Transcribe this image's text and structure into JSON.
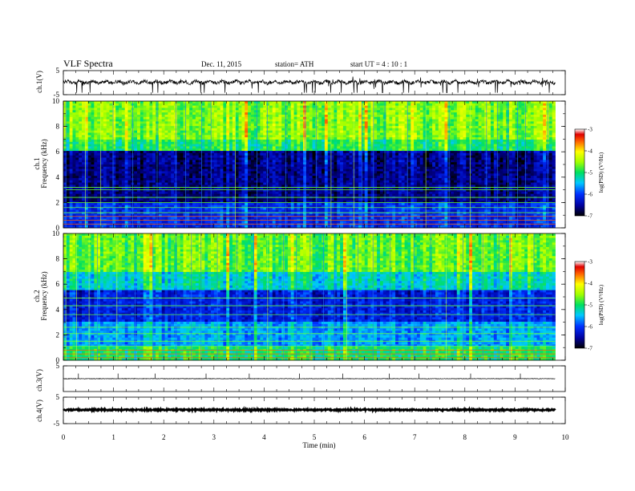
{
  "header": {
    "title": "VLF Spectra",
    "date": "Dec. 11, 2015",
    "station": "station= ATH",
    "start": "start  UT  =   4 : 10 : 1"
  },
  "chart_data": [
    {
      "type": "line",
      "panel": "ch1-waveform",
      "ylabel": "ch.1(V)",
      "ylim": [
        -5,
        5
      ],
      "yticks": [
        "5",
        "-5"
      ],
      "xlim": [
        0,
        10
      ]
    },
    {
      "type": "heatmap",
      "panel": "ch1-spectrogram",
      "ylabel_line1": "ch.1",
      "ylabel_line2": "Frequency  (kHz)",
      "ylim": [
        0,
        10
      ],
      "yticks": [
        "0",
        "2",
        "4",
        "6",
        "8",
        "10"
      ],
      "xlim": [
        0,
        10
      ],
      "colorbar": {
        "label": "log(PSD) (V²/Hz)",
        "range": [
          -7,
          -3
        ],
        "ticks": [
          "-3",
          "-4",
          "-5",
          "-6",
          "-7"
        ]
      }
    },
    {
      "type": "heatmap",
      "panel": "ch2-spectrogram",
      "ylabel_line1": "ch.2",
      "ylabel_line2": "Frequency  (kHz)",
      "ylim": [
        0,
        10
      ],
      "yticks": [
        "0",
        "2",
        "4",
        "6",
        "8",
        "10"
      ],
      "xlim": [
        0,
        10
      ],
      "colorbar": {
        "label": "log(PSD) (V²/Hz)",
        "range": [
          -7,
          -3
        ],
        "ticks": [
          "-3",
          "-4",
          "-5",
          "-6",
          "-7"
        ]
      }
    },
    {
      "type": "line",
      "panel": "ch3-waveform",
      "ylabel": "ch.3(V)",
      "ylim": [
        -5,
        5
      ],
      "yticks": [
        "5"
      ],
      "xlim": [
        0,
        10
      ]
    },
    {
      "type": "line",
      "panel": "ch4-waveform",
      "ylabel": "ch.4(V)",
      "ylim": [
        -5,
        5
      ],
      "yticks": [
        "5",
        "-5"
      ],
      "xlim": [
        0,
        10
      ],
      "xlabel": "Time  (min)",
      "xticks": [
        "0",
        "1",
        "2",
        "3",
        "4",
        "5",
        "6",
        "7",
        "8",
        "9",
        "10"
      ]
    }
  ]
}
